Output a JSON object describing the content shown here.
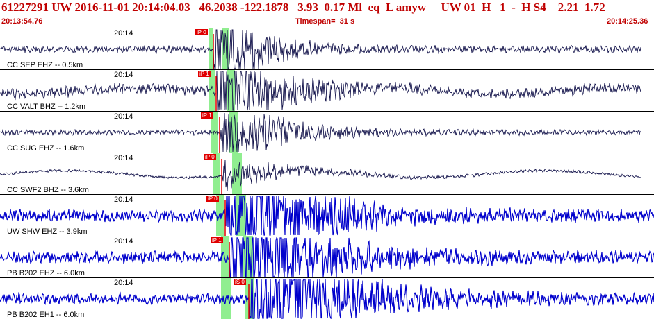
{
  "header": {
    "event_line": "61227291 UW 2016-11-01 20:14:04.03   46.2038 -122.1878   3.93  0.17 Ml  eq  L amyw     UW 01  H   1  -  H S4    2.21  1.72",
    "start_time": "20:13:54.76",
    "timespan": "Timespan=  31 s",
    "end_time": "20:14:25.36"
  },
  "colors": {
    "header_text": "#c00000",
    "trace_dark": "#12124a",
    "trace_blue": "#0000cc",
    "pick_flag": "#e00000",
    "pick_window": "#90ee90"
  },
  "channels": [
    {
      "label": "CC SEP EHZ -- 0.5km",
      "time": "20:14",
      "pick": "iP 0",
      "trace_color": "dark"
    },
    {
      "label": "CC VALT BHZ -- 1.2km",
      "time": "20:14",
      "pick": "iP 1",
      "trace_color": "dark"
    },
    {
      "label": "CC SUG EHZ -- 1.6km",
      "time": "20:14",
      "pick": "iP 1",
      "trace_color": "dark"
    },
    {
      "label": "CC SWF2 BHZ -- 3.6km",
      "time": "20:14",
      "pick": "iP 0",
      "trace_color": "dark"
    },
    {
      "label": "UW SHW EHZ -- 3.9km",
      "time": "20:14",
      "pick": "iP 0",
      "trace_color": "blue"
    },
    {
      "label": "PB B202 EHZ -- 6.0km",
      "time": "20:14",
      "pick": "iP 1",
      "trace_color": "blue"
    },
    {
      "label": "PB B202 EH1 -- 6.0km",
      "time": "20:14",
      "pick": "iS 0",
      "trace_color": "blue"
    }
  ]
}
